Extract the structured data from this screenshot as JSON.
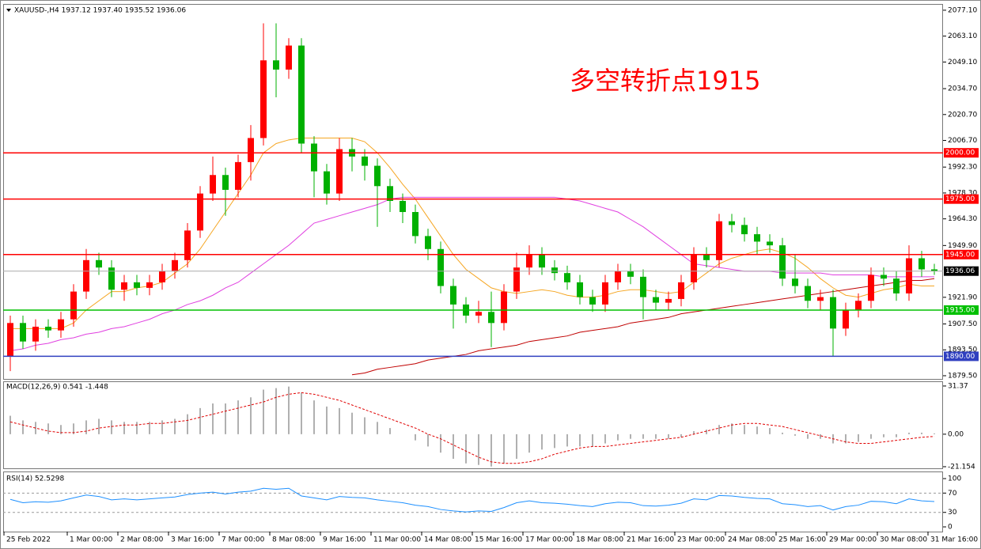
{
  "chart_data": [
    {
      "type": "candlestick",
      "title": "XAUUSD-,H4 1937.12 1937.40 1935.52 1936.06",
      "annotation": "多空转折点1915",
      "categories": [
        "25 Feb 2022",
        null,
        null,
        null,
        null,
        "1 Mar 00:00",
        null,
        null,
        null,
        "2 Mar 08:00",
        null,
        null,
        null,
        "3 Mar 16:00",
        null,
        null,
        null,
        "7 Mar 00:00",
        null,
        null,
        null,
        "8 Mar 08:00",
        null,
        null,
        null,
        "9 Mar 16:00",
        null,
        null,
        null,
        "11 Mar 00:00",
        null,
        null,
        null,
        "14 Mar 08:00",
        null,
        null,
        null,
        "15 Mar 16:00",
        null,
        null,
        null,
        "17 Mar 00:00",
        null,
        null,
        null,
        "18 Mar 08:00",
        null,
        null,
        null,
        "21 Mar 16:00",
        null,
        null,
        null,
        "23 Mar 00:00",
        null,
        null,
        null,
        "24 Mar 08:00",
        null,
        null,
        null,
        "25 Mar 16:00",
        null,
        null,
        null,
        "29 Mar 00:00",
        null,
        null,
        null,
        "30 Mar 08:00",
        null,
        null,
        null,
        "31 Mar 16:00"
      ],
      "open": [
        1890,
        1908,
        1898,
        1906,
        1904,
        1910,
        1925,
        1942,
        1938,
        1926,
        1930,
        1927,
        1930,
        1936,
        1942,
        1958,
        1978,
        1988,
        1980,
        1995,
        2008,
        2050,
        2045,
        2058,
        2005,
        1990,
        1978,
        2002,
        1998,
        1993,
        1982,
        1974,
        1968,
        1955,
        1948,
        1928,
        1918,
        1912,
        1914,
        1908,
        1925,
        1938,
        1945,
        1938,
        1935,
        1930,
        1922,
        1918,
        1930,
        1936,
        1933,
        1922,
        1919,
        1921,
        1930,
        1945,
        1942,
        1963,
        1961,
        1956,
        1952,
        1950,
        1932,
        1928,
        1920,
        1922,
        1905,
        1915,
        1920,
        1934,
        1932,
        1924,
        1943,
        1937
      ],
      "high": [
        1912,
        1912,
        1910,
        1910,
        1914,
        1929,
        1948,
        1946,
        1942,
        1934,
        1934,
        1934,
        1940,
        1946,
        1962,
        1982,
        1998,
        1992,
        1999,
        2015,
        2070,
        2070,
        2062,
        2062,
        2009,
        1994,
        2008,
        2008,
        2002,
        1997,
        1986,
        1978,
        1972,
        1959,
        1952,
        1932,
        1922,
        1920,
        1925,
        1929,
        1946,
        1950,
        1949,
        1942,
        1939,
        1934,
        1926,
        1934,
        1940,
        1940,
        1937,
        1926,
        1925,
        1934,
        1949,
        1949,
        1967,
        1967,
        1965,
        1960,
        1956,
        1954,
        1945,
        1932,
        1926,
        1926,
        1919,
        1924,
        1938,
        1938,
        1936,
        1950,
        1947,
        1940
      ],
      "low": [
        1882,
        1894,
        1893,
        1900,
        1900,
        1906,
        1921,
        1934,
        1922,
        1920,
        1923,
        1923,
        1926,
        1932,
        1938,
        1954,
        1974,
        1966,
        1976,
        1985,
        2004,
        2030,
        2040,
        2000,
        1976,
        1972,
        1974,
        1990,
        1985,
        1960,
        1968,
        1962,
        1951,
        1942,
        1924,
        1905,
        1908,
        1908,
        1895,
        1904,
        1921,
        1934,
        1934,
        1931,
        1926,
        1918,
        1914,
        1914,
        1926,
        1929,
        1910,
        1915,
        1915,
        1917,
        1926,
        1938,
        1938,
        1957,
        1952,
        1945,
        1946,
        1928,
        1924,
        1916,
        1915,
        1890,
        1901,
        1911,
        1916,
        1928,
        1920,
        1920,
        1933,
        1934
      ],
      "close": [
        1908,
        1898,
        1906,
        1904,
        1910,
        1925,
        1942,
        1938,
        1926,
        1930,
        1927,
        1930,
        1936,
        1942,
        1958,
        1978,
        1988,
        1980,
        1995,
        2008,
        2050,
        2045,
        2058,
        2005,
        1990,
        1978,
        2002,
        1998,
        1993,
        1982,
        1974,
        1968,
        1955,
        1948,
        1928,
        1918,
        1912,
        1914,
        1908,
        1925,
        1938,
        1945,
        1938,
        1935,
        1930,
        1922,
        1918,
        1930,
        1936,
        1933,
        1922,
        1919,
        1921,
        1930,
        1945,
        1942,
        1963,
        1961,
        1956,
        1952,
        1950,
        1932,
        1928,
        1920,
        1922,
        1905,
        1915,
        1920,
        1934,
        1932,
        1924,
        1943,
        1937,
        1936.06
      ],
      "up_color": "#ff0000",
      "down_color": "#00b000",
      "overlays": [
        {
          "color": "#f5a623",
          "values": [
            1905,
            1905,
            1905,
            1905,
            1905,
            1908,
            1915,
            1920,
            1925,
            1925,
            1927,
            1928,
            1930,
            1935,
            1940,
            1948,
            1958,
            1968,
            1978,
            1988,
            2000,
            2005,
            2007,
            2008,
            2008,
            2008,
            2008,
            2008,
            2006,
            2000,
            1992,
            1983,
            1975,
            1965,
            1955,
            1945,
            1937,
            1932,
            1927,
            1925,
            1924,
            1925,
            1926,
            1925,
            1923,
            1922,
            1922,
            1923,
            1925,
            1926,
            1926,
            1925,
            1924,
            1925,
            1930,
            1935,
            1940,
            1943,
            1945,
            1947,
            1948,
            1946,
            1943,
            1938,
            1932,
            1927,
            1923,
            1922,
            1924,
            1926,
            1927,
            1929,
            1928,
            1928
          ]
        },
        {
          "color": "#e040e0",
          "values": [
            1893,
            1894,
            1896,
            1897,
            1899,
            1900,
            1902,
            1903,
            1905,
            1906,
            1908,
            1910,
            1913,
            1915,
            1918,
            1920,
            1923,
            1927,
            1930,
            1935,
            1940,
            1945,
            1950,
            1956,
            1962,
            1964,
            1966,
            1968,
            1970,
            1972,
            1975,
            1976,
            1976,
            1976,
            1976,
            1976,
            1976,
            1976,
            1976,
            1976,
            1976,
            1976,
            1976,
            1976,
            1975,
            1974,
            1972,
            1970,
            1968,
            1964,
            1960,
            1955,
            1950,
            1945,
            1940,
            1939,
            1938,
            1937,
            1936,
            1936,
            1936,
            1935,
            1935,
            1935,
            1935,
            1934,
            1934,
            1934,
            1934,
            1933,
            1933,
            1933,
            1933,
            1933
          ]
        },
        {
          "color": "#c00000",
          "values": [
            null,
            null,
            null,
            null,
            null,
            null,
            null,
            null,
            null,
            null,
            null,
            null,
            null,
            null,
            null,
            null,
            null,
            null,
            null,
            null,
            null,
            null,
            null,
            null,
            null,
            null,
            null,
            1880,
            1881,
            1883,
            1884,
            1885,
            1886,
            1888,
            1889,
            1890,
            1891,
            1893,
            1894,
            1895,
            1896,
            1898,
            1899,
            1900,
            1901,
            1903,
            1904,
            1905,
            1906,
            1908,
            1909,
            1910,
            1911,
            1913,
            1914,
            1915,
            1916,
            1917,
            1918,
            1919,
            1920,
            1921,
            1922,
            1923,
            1924,
            1925,
            1926,
            1927,
            1928,
            1929,
            1930,
            1931,
            1931,
            1932
          ]
        }
      ],
      "levels": [
        {
          "value": 2000,
          "label": "2000.00",
          "color": "#ff0000"
        },
        {
          "value": 1975,
          "label": "1975.00",
          "color": "#ff0000"
        },
        {
          "value": 1945,
          "label": "1945.00",
          "color": "#ff0000"
        },
        {
          "value": 1915,
          "label": "1915.00",
          "color": "#00c000"
        },
        {
          "value": 1890,
          "label": "1890.00",
          "color": "#3040c0"
        }
      ],
      "last_price": 1936.06,
      "ylim": [
        1878.2,
        2079.2
      ],
      "yticks": [
        {
          "value": 2077.1,
          "label": "2077.10"
        },
        {
          "value": 2063.1,
          "label": "2063.10"
        },
        {
          "value": 2049.1,
          "label": "2049.10"
        },
        {
          "value": 2034.7,
          "label": "2034.70"
        },
        {
          "value": 2020.7,
          "label": "2020.70"
        },
        {
          "value": 2006.7,
          "label": "2006.70"
        },
        {
          "value": 1992.3,
          "label": "1992.30"
        },
        {
          "value": 1978.3,
          "label": "1978.30"
        },
        {
          "value": 1964.3,
          "label": "1964.30"
        },
        {
          "value": 1949.9,
          "label": "1949.90"
        },
        {
          "value": 1921.9,
          "label": "1921.90"
        },
        {
          "value": 1907.5,
          "label": "1907.50"
        },
        {
          "value": 1893.5,
          "label": "1893.50"
        },
        {
          "value": 1879.5,
          "label": "1879.50"
        }
      ]
    },
    {
      "type": "macd",
      "title": "MACD(12,26,9) 0.541 -1.448",
      "histogram": [
        12,
        9,
        8,
        7,
        6,
        7,
        9,
        10,
        9,
        8,
        8,
        8,
        9,
        10,
        13,
        17,
        20,
        20,
        22,
        24,
        29,
        30,
        31,
        27,
        22,
        18,
        17,
        14,
        11,
        8,
        4,
        0,
        -4,
        -8,
        -12,
        -16,
        -19,
        -20,
        -21,
        -19,
        -16,
        -12,
        -10,
        -9,
        -8,
        -8,
        -8,
        -6,
        -4,
        -3,
        -3,
        -3,
        -3,
        -2,
        2,
        3,
        6,
        7,
        6,
        5,
        4,
        1,
        -1,
        -3,
        -3,
        -6,
        -6,
        -5,
        -3,
        -2,
        -2,
        1,
        1,
        0.541
      ],
      "signal": [
        8,
        6,
        4,
        2,
        1,
        1,
        2,
        4,
        5,
        6,
        6,
        7,
        7,
        8,
        9,
        11,
        13,
        15,
        17,
        19,
        21,
        24,
        26,
        27,
        26,
        24,
        22,
        19,
        16,
        13,
        10,
        7,
        4,
        0,
        -3,
        -7,
        -11,
        -15,
        -18,
        -19,
        -19,
        -18,
        -16,
        -13,
        -11,
        -9,
        -8,
        -8,
        -7,
        -6,
        -5,
        -4,
        -3,
        -2,
        0,
        2,
        4,
        6,
        7,
        7,
        6,
        5,
        3,
        1,
        -1,
        -3,
        -5,
        -6,
        -6,
        -5,
        -4,
        -3,
        -2,
        -1.448
      ],
      "hist_color": "#b0b0b0",
      "signal_color": "#e00000",
      "ylim": [
        -22.2,
        33.4
      ],
      "yticks": [
        31.37,
        {
          "value": 0,
          "label": "0.00"
        },
        -21.154
      ]
    },
    {
      "type": "line",
      "title": "RSI(14) 52.5298",
      "values": [
        57,
        50,
        52,
        51,
        54,
        60,
        66,
        63,
        56,
        58,
        56,
        58,
        60,
        62,
        67,
        70,
        72,
        68,
        72,
        74,
        80,
        78,
        80,
        64,
        60,
        56,
        63,
        61,
        60,
        56,
        53,
        50,
        45,
        42,
        36,
        33,
        31,
        33,
        32,
        40,
        50,
        54,
        50,
        49,
        47,
        44,
        42,
        48,
        51,
        50,
        44,
        43,
        45,
        49,
        58,
        56,
        65,
        64,
        61,
        59,
        58,
        48,
        46,
        42,
        44,
        35,
        42,
        45,
        53,
        52,
        48,
        58,
        54,
        52.5298
      ],
      "color": "#1e90ff",
      "levels": [
        70,
        30
      ],
      "ylim": [
        -9.8,
        111.5
      ],
      "yticks": [
        100,
        70,
        30,
        0
      ]
    }
  ]
}
